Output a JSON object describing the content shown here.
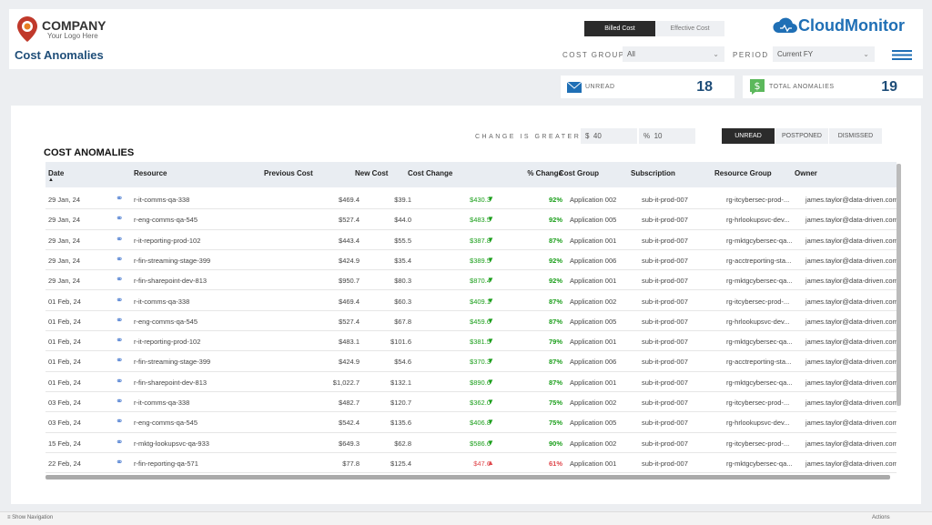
{
  "header": {
    "company": "COMPANY",
    "tagline": "Your Logo Here",
    "page_title": "Cost Anomalies",
    "toggle": [
      "Billed Cost",
      "Effective Cost"
    ],
    "brand": "CloudMonitor",
    "cost_group_label": "COST GROUP",
    "cost_group_value": "All",
    "period_label": "PERIOD",
    "period_value": "Current FY"
  },
  "kpis": [
    {
      "label": "UNREAD",
      "value": 18
    },
    {
      "label": "TOTAL ANOMALIES",
      "value": 19
    }
  ],
  "panel": {
    "title": "COST ANOMALIES",
    "change_label": "CHANGE IS GREATER",
    "amount_prefix": "$",
    "amount": "40",
    "pct_prefix": "%",
    "pct": "10",
    "tabs": [
      "UNREAD",
      "POSTPONED",
      "DISMISSED"
    ]
  },
  "table": {
    "columns": [
      "Date",
      "Resource",
      "Previous Cost",
      "New Cost",
      "Cost Change",
      "% Change",
      "Cost Group",
      "Subscription",
      "Resource Group",
      "Owner"
    ],
    "rows": [
      [
        "29 Jan, 24",
        "r-it-comms-qa-338",
        "$469.4",
        "$39.1",
        "$430.3",
        "92%",
        "Application 002",
        "sub-it-prod-007",
        "rg-itcybersec-prod-...",
        "james.taylor@data-driven.com"
      ],
      [
        "29 Jan, 24",
        "r-eng-comms-qa-545",
        "$527.4",
        "$44.0",
        "$483.5",
        "92%",
        "Application 005",
        "sub-it-prod-007",
        "rg-hrlookupsvc-dev...",
        "james.taylor@data-driven.com"
      ],
      [
        "29 Jan, 24",
        "r-it-reporting-prod-102",
        "$443.4",
        "$55.5",
        "$387.8",
        "87%",
        "Application 001",
        "sub-it-prod-007",
        "rg-mktgcybersec-qa...",
        "james.taylor@data-driven.com"
      ],
      [
        "29 Jan, 24",
        "r-fin-streaming-stage-399",
        "$424.9",
        "$35.4",
        "$389.5",
        "92%",
        "Application 006",
        "sub-it-prod-007",
        "rg-acctreporting-sta...",
        "james.taylor@data-driven.com"
      ],
      [
        "29 Jan, 24",
        "r-fin-sharepoint-dev-813",
        "$950.7",
        "$80.3",
        "$870.4",
        "92%",
        "Application 001",
        "sub-it-prod-007",
        "rg-mktgcybersec-qa...",
        "james.taylor@data-driven.com"
      ],
      [
        "01 Feb, 24",
        "r-it-comms-qa-338",
        "$469.4",
        "$60.3",
        "$409.1",
        "87%",
        "Application 002",
        "sub-it-prod-007",
        "rg-itcybersec-prod-...",
        "james.taylor@data-driven.com"
      ],
      [
        "01 Feb, 24",
        "r-eng-comms-qa-545",
        "$527.4",
        "$67.8",
        "$459.6",
        "87%",
        "Application 005",
        "sub-it-prod-007",
        "rg-hrlookupsvc-dev...",
        "james.taylor@data-driven.com"
      ],
      [
        "01 Feb, 24",
        "r-it-reporting-prod-102",
        "$483.1",
        "$101.6",
        "$381.5",
        "79%",
        "Application 001",
        "sub-it-prod-007",
        "rg-mktgcybersec-qa...",
        "james.taylor@data-driven.com"
      ],
      [
        "01 Feb, 24",
        "r-fin-streaming-stage-399",
        "$424.9",
        "$54.6",
        "$370.3",
        "87%",
        "Application 006",
        "sub-it-prod-007",
        "rg-acctreporting-sta...",
        "james.taylor@data-driven.com"
      ],
      [
        "01 Feb, 24",
        "r-fin-sharepoint-dev-813",
        "$1,022.7",
        "$132.1",
        "$890.6",
        "87%",
        "Application 001",
        "sub-it-prod-007",
        "rg-mktgcybersec-qa...",
        "james.taylor@data-driven.com"
      ],
      [
        "03 Feb, 24",
        "r-it-comms-qa-338",
        "$482.7",
        "$120.7",
        "$362.0",
        "75%",
        "Application 002",
        "sub-it-prod-007",
        "rg-itcybersec-prod-...",
        "james.taylor@data-driven.com"
      ],
      [
        "03 Feb, 24",
        "r-eng-comms-qa-545",
        "$542.4",
        "$135.6",
        "$406.8",
        "75%",
        "Application 005",
        "sub-it-prod-007",
        "rg-hrlookupsvc-dev...",
        "james.taylor@data-driven.com"
      ],
      [
        "15 Feb, 24",
        "r-mktg-lookupsvc-qa-933",
        "$649.3",
        "$62.8",
        "$586.6",
        "90%",
        "Application 002",
        "sub-it-prod-007",
        "rg-itcybersec-prod-...",
        "james.taylor@data-driven.com"
      ],
      [
        "22 Feb, 24",
        "r-fin-reporting-qa-571",
        "$77.8",
        "$125.4",
        "$47.6",
        "61%",
        "Application 001",
        "sub-it-prod-007",
        "rg-mktgcybersec-qa...",
        "james.taylor@data-driven.com"
      ]
    ]
  },
  "footer": {
    "navigation": "Show Navigation",
    "actions": "Actions"
  }
}
